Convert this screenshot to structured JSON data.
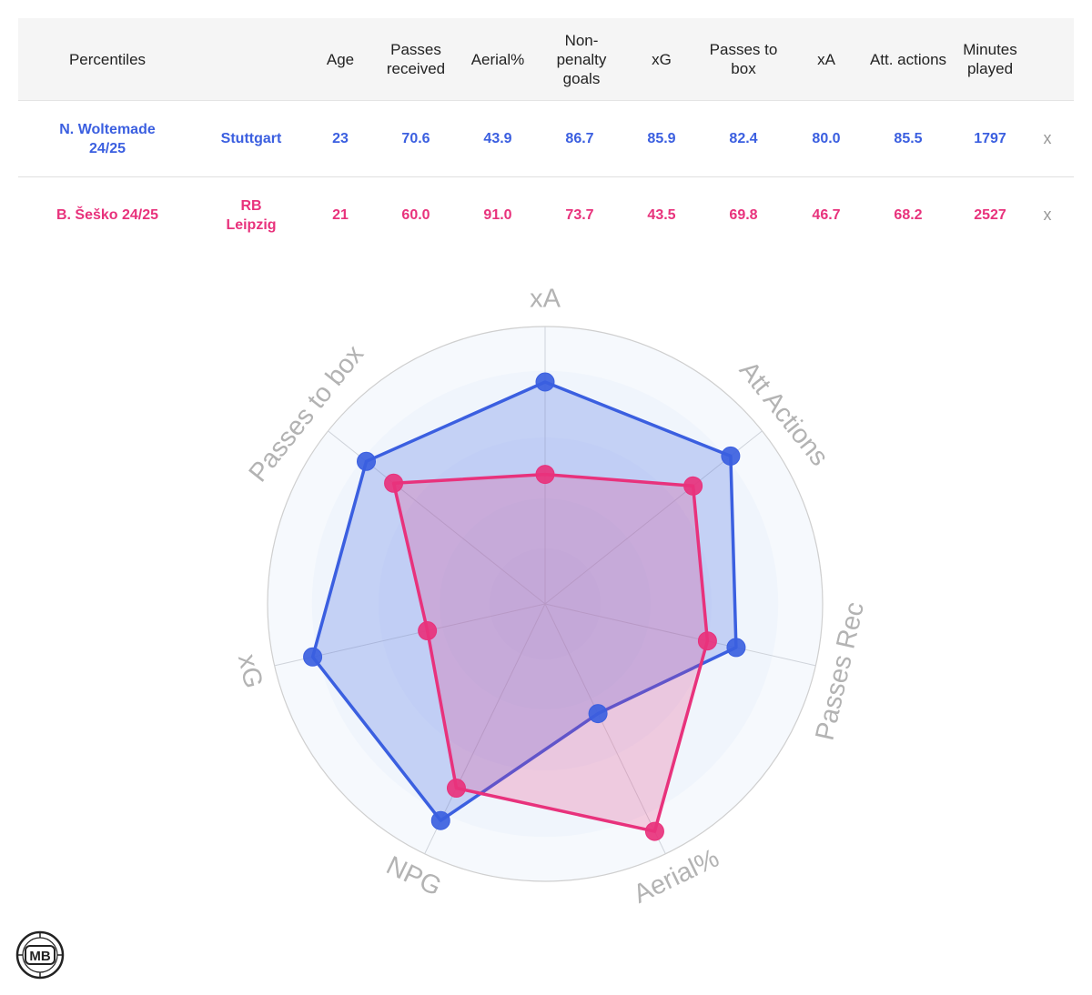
{
  "table": {
    "columns": [
      "Percentiles",
      "",
      "Age",
      "Passes received",
      "Aerial%",
      "Non-penalty goals",
      "xG",
      "Passes to box",
      "xA",
      "Att. actions",
      "Minutes played"
    ],
    "rows": [
      {
        "player": "N. Woltemade 24/25",
        "team": "Stuttgart",
        "color": "#3b5fe0",
        "values": [
          "23",
          "70.6",
          "43.9",
          "86.7",
          "85.9",
          "82.4",
          "80.0",
          "85.5",
          "1797"
        ],
        "remove": "x"
      },
      {
        "player": "B. Šeško 24/25",
        "team": "RB Leipzig",
        "color": "#e8327c",
        "values": [
          "21",
          "60.0",
          "91.0",
          "73.7",
          "43.5",
          "69.8",
          "46.7",
          "68.2",
          "2527"
        ],
        "remove": "x"
      }
    ]
  },
  "chart_data": {
    "type": "radar",
    "axes": [
      "xA",
      "Att Actions",
      "Passes Rec",
      "Aerial%",
      "NPG",
      "xG",
      "Passes to box"
    ],
    "range": [
      0,
      100
    ],
    "series": [
      {
        "name": "N. Woltemade 24/25",
        "color": "#3b5fe0",
        "values": [
          80.0,
          85.5,
          70.6,
          43.9,
          86.7,
          85.9,
          82.4
        ]
      },
      {
        "name": "B. Šeško 24/25",
        "color": "#e8327c",
        "values": [
          46.7,
          68.2,
          60.0,
          91.0,
          73.7,
          43.5,
          69.8
        ]
      }
    ],
    "grid": true
  },
  "logo": {
    "text": "MB"
  }
}
